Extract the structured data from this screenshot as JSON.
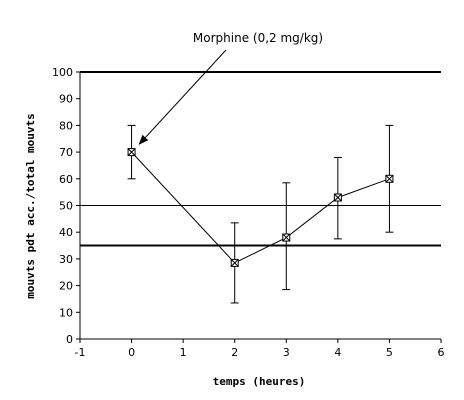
{
  "chart_data": {
    "type": "line",
    "xlabel": "temps (heures)",
    "ylabel": "mouvts pdt acc./total mouvts",
    "xlim": [
      -1,
      6
    ],
    "ylim": [
      0,
      100
    ],
    "x_ticks": [
      -1,
      0,
      1,
      2,
      3,
      4,
      5,
      6
    ],
    "y_ticks": [
      0,
      10,
      20,
      30,
      40,
      50,
      60,
      70,
      80,
      90,
      100
    ],
    "x_tick_labels": [
      "-1",
      "0",
      "1",
      "2",
      "3",
      "4",
      "5",
      "6"
    ],
    "y_tick_labels": [
      "0",
      "10",
      "20",
      "30",
      "40",
      "50",
      "60",
      "70",
      "80",
      "90",
      "100"
    ],
    "grid": false,
    "series": [
      {
        "x": [
          0,
          2,
          3,
          4,
          5
        ],
        "y": [
          70,
          28.5,
          38,
          53,
          60
        ],
        "error_low": [
          60,
          13.5,
          18.5,
          37.5,
          40
        ],
        "error_high": [
          80,
          43.5,
          58.5,
          68,
          80
        ],
        "marker": "square-with-x",
        "color": "#000000"
      }
    ],
    "reference_lines": [
      {
        "y": 100,
        "style": "thick"
      },
      {
        "y": 50,
        "style": "thin"
      },
      {
        "y": 35,
        "style": "thick"
      }
    ],
    "annotations": [
      {
        "text": "Morphine (0,2 mg/kg)",
        "arrow_to": {
          "x": 0.15,
          "y": 73
        }
      }
    ]
  }
}
